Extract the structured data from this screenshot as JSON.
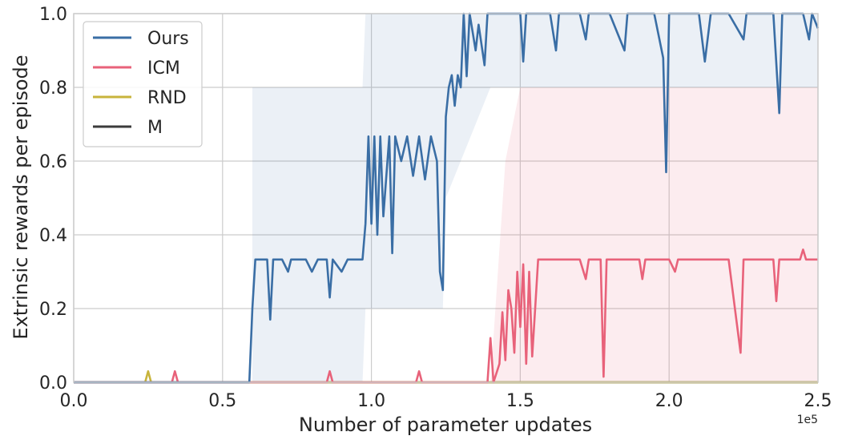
{
  "chart_data": {
    "type": "line",
    "xlabel": "Number of parameter updates",
    "ylabel": "Extrinsic rewards per episode",
    "x_scale_label": "1e5",
    "xlim": [
      0,
      2.5
    ],
    "ylim": [
      0,
      1.0
    ],
    "x_ticks": [
      "0.0",
      "0.5",
      "1.0",
      "1.5",
      "2.0",
      "2.5"
    ],
    "y_ticks": [
      "0.0",
      "0.2",
      "0.4",
      "0.6",
      "0.8",
      "1.0"
    ],
    "grid": true,
    "legend_position": "top-left",
    "series": [
      {
        "name": "Ours",
        "color": "#3a6ea5",
        "points": [
          [
            0,
            0
          ],
          [
            0.59,
            0
          ],
          [
            0.6,
            0.2
          ],
          [
            0.61,
            0.333
          ],
          [
            0.65,
            0.333
          ],
          [
            0.66,
            0.17
          ],
          [
            0.67,
            0.333
          ],
          [
            0.7,
            0.333
          ],
          [
            0.72,
            0.3
          ],
          [
            0.73,
            0.333
          ],
          [
            0.78,
            0.333
          ],
          [
            0.8,
            0.3
          ],
          [
            0.82,
            0.333
          ],
          [
            0.85,
            0.333
          ],
          [
            0.86,
            0.23
          ],
          [
            0.87,
            0.333
          ],
          [
            0.9,
            0.3
          ],
          [
            0.92,
            0.333
          ],
          [
            0.97,
            0.333
          ],
          [
            0.98,
            0.43
          ],
          [
            0.99,
            0.667
          ],
          [
            1.0,
            0.43
          ],
          [
            1.01,
            0.667
          ],
          [
            1.02,
            0.4
          ],
          [
            1.03,
            0.667
          ],
          [
            1.04,
            0.45
          ],
          [
            1.06,
            0.667
          ],
          [
            1.07,
            0.35
          ],
          [
            1.08,
            0.667
          ],
          [
            1.1,
            0.6
          ],
          [
            1.12,
            0.667
          ],
          [
            1.14,
            0.56
          ],
          [
            1.16,
            0.667
          ],
          [
            1.18,
            0.55
          ],
          [
            1.2,
            0.667
          ],
          [
            1.22,
            0.6
          ],
          [
            1.23,
            0.3
          ],
          [
            1.24,
            0.25
          ],
          [
            1.25,
            0.72
          ],
          [
            1.26,
            0.8
          ],
          [
            1.27,
            0.833
          ],
          [
            1.28,
            0.75
          ],
          [
            1.29,
            0.833
          ],
          [
            1.3,
            0.8
          ],
          [
            1.31,
            1.0
          ],
          [
            1.32,
            0.83
          ],
          [
            1.33,
            1.0
          ],
          [
            1.35,
            0.9
          ],
          [
            1.36,
            0.97
          ],
          [
            1.38,
            0.86
          ],
          [
            1.39,
            1.0
          ],
          [
            1.5,
            1.0
          ],
          [
            1.51,
            0.87
          ],
          [
            1.52,
            1.0
          ],
          [
            1.6,
            1.0
          ],
          [
            1.62,
            0.9
          ],
          [
            1.63,
            1.0
          ],
          [
            1.7,
            1.0
          ],
          [
            1.72,
            0.93
          ],
          [
            1.73,
            1.0
          ],
          [
            1.8,
            1.0
          ],
          [
            1.85,
            0.9
          ],
          [
            1.86,
            1.0
          ],
          [
            1.95,
            1.0
          ],
          [
            1.98,
            0.88
          ],
          [
            1.99,
            0.57
          ],
          [
            2.0,
            1.0
          ],
          [
            2.1,
            1.0
          ],
          [
            2.12,
            0.87
          ],
          [
            2.14,
            1.0
          ],
          [
            2.2,
            1.0
          ],
          [
            2.25,
            0.93
          ],
          [
            2.26,
            1.0
          ],
          [
            2.35,
            1.0
          ],
          [
            2.37,
            0.73
          ],
          [
            2.38,
            1.0
          ],
          [
            2.45,
            1.0
          ],
          [
            2.47,
            0.93
          ],
          [
            2.48,
            1.0
          ],
          [
            2.5,
            0.96
          ]
        ]
      },
      {
        "name": "ICM",
        "color": "#e8627a",
        "points": [
          [
            0,
            0
          ],
          [
            0.33,
            0
          ],
          [
            0.34,
            0.03
          ],
          [
            0.35,
            0
          ],
          [
            0.85,
            0
          ],
          [
            0.86,
            0.03
          ],
          [
            0.87,
            0
          ],
          [
            1.15,
            0
          ],
          [
            1.16,
            0.03
          ],
          [
            1.17,
            0
          ],
          [
            1.39,
            0
          ],
          [
            1.4,
            0.12
          ],
          [
            1.41,
            0
          ],
          [
            1.43,
            0.05
          ],
          [
            1.44,
            0.19
          ],
          [
            1.45,
            0.06
          ],
          [
            1.46,
            0.25
          ],
          [
            1.47,
            0.2
          ],
          [
            1.48,
            0.08
          ],
          [
            1.49,
            0.3
          ],
          [
            1.5,
            0.15
          ],
          [
            1.51,
            0.32
          ],
          [
            1.52,
            0.05
          ],
          [
            1.53,
            0.3
          ],
          [
            1.54,
            0.07
          ],
          [
            1.55,
            0.2
          ],
          [
            1.56,
            0.333
          ],
          [
            1.7,
            0.333
          ],
          [
            1.72,
            0.28
          ],
          [
            1.73,
            0.333
          ],
          [
            1.77,
            0.333
          ],
          [
            1.78,
            0.015
          ],
          [
            1.79,
            0.333
          ],
          [
            1.9,
            0.333
          ],
          [
            1.91,
            0.28
          ],
          [
            1.92,
            0.333
          ],
          [
            2.0,
            0.333
          ],
          [
            2.02,
            0.3
          ],
          [
            2.03,
            0.333
          ],
          [
            2.2,
            0.333
          ],
          [
            2.24,
            0.08
          ],
          [
            2.25,
            0.333
          ],
          [
            2.35,
            0.333
          ],
          [
            2.36,
            0.22
          ],
          [
            2.37,
            0.333
          ],
          [
            2.44,
            0.333
          ],
          [
            2.45,
            0.36
          ],
          [
            2.46,
            0.333
          ],
          [
            2.5,
            0.333
          ]
        ]
      },
      {
        "name": "RND",
        "color": "#c8b43c",
        "points": [
          [
            0,
            0
          ],
          [
            0.24,
            0
          ],
          [
            0.25,
            0.03
          ],
          [
            0.26,
            0
          ],
          [
            2.5,
            0
          ]
        ]
      },
      {
        "name": "M",
        "color": "#3b3b3b",
        "points": [
          [
            0,
            0
          ],
          [
            2.5,
            0
          ]
        ]
      }
    ]
  }
}
